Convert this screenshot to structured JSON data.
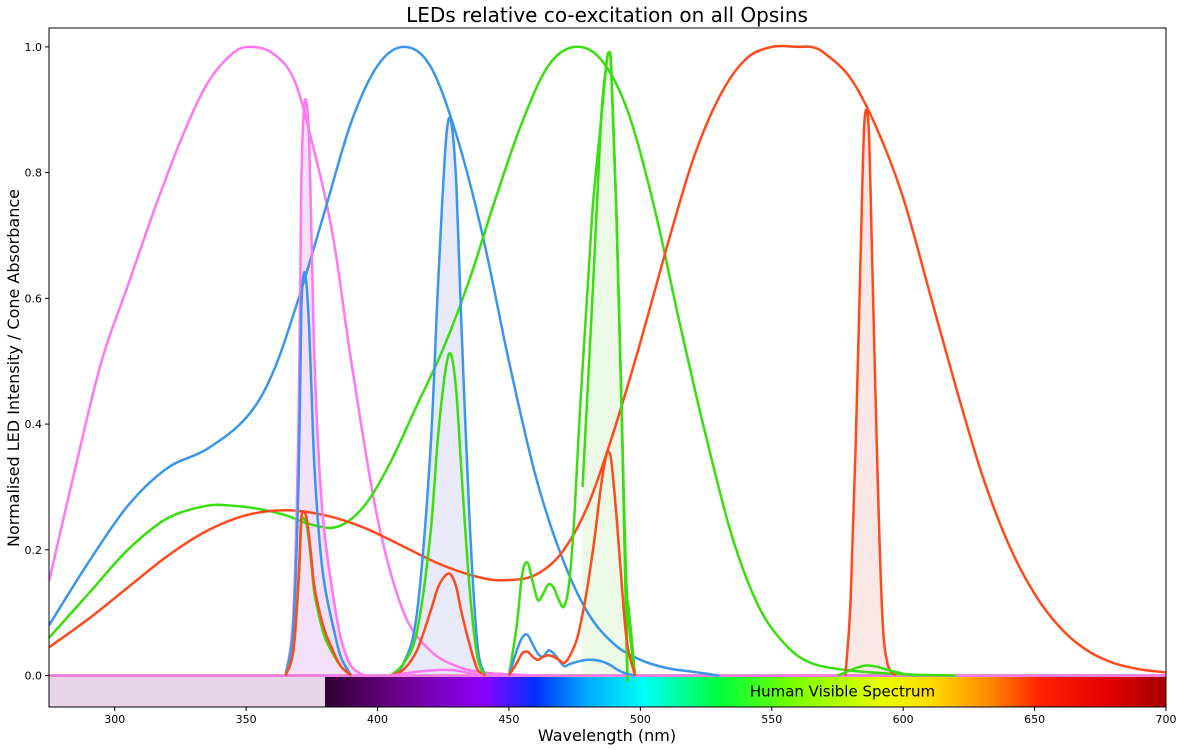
{
  "chart_data": {
    "type": "line",
    "title": "LEDs relative co-excitation on all Opsins",
    "xlabel": "Wavelength (nm)",
    "ylabel": "Normalised LED Intensity / Cone Absorbance",
    "xlim": [
      275,
      700
    ],
    "ylim": [
      -0.05,
      1.03
    ],
    "x_ticks": [
      300,
      350,
      400,
      450,
      500,
      550,
      600,
      650,
      700
    ],
    "y_ticks": [
      0.0,
      0.2,
      0.4,
      0.6,
      0.8,
      1.0
    ],
    "y_tick_labels": [
      "0.0",
      "0.2",
      "0.4",
      "0.6",
      "0.8",
      "1.0"
    ],
    "grid": false,
    "legend": "none",
    "spectrum_band": {
      "label": "Human Visible Spectrum",
      "range_nm": [
        380,
        700
      ],
      "uv_region_nm": [
        275,
        380
      ],
      "y_range": [
        -0.05,
        0.0
      ]
    },
    "series": [
      {
        "role": "opsin",
        "color": "#ff77f2",
        "x": [
          275,
          285,
          295,
          305,
          315,
          325,
          335,
          345,
          352,
          360,
          368,
          375,
          383,
          390,
          400,
          410,
          420,
          430,
          440,
          450,
          460
        ],
        "y": [
          0.15,
          0.33,
          0.5,
          0.62,
          0.74,
          0.85,
          0.94,
          0.99,
          1.0,
          0.99,
          0.95,
          0.85,
          0.7,
          0.5,
          0.25,
          0.1,
          0.04,
          0.015,
          0.005,
          0.002,
          0.0
        ]
      },
      {
        "role": "opsin",
        "color": "#3b96eb",
        "x": [
          275,
          290,
          305,
          320,
          335,
          350,
          360,
          370,
          380,
          390,
          400,
          410,
          420,
          430,
          440,
          450,
          460,
          470,
          480,
          490,
          500,
          510,
          520,
          530
        ],
        "y": [
          0.08,
          0.18,
          0.27,
          0.33,
          0.36,
          0.41,
          0.48,
          0.6,
          0.74,
          0.88,
          0.97,
          1.0,
          0.97,
          0.86,
          0.7,
          0.5,
          0.32,
          0.19,
          0.1,
          0.05,
          0.025,
          0.012,
          0.006,
          0.0
        ]
      },
      {
        "role": "opsin",
        "color": "#39de0e",
        "x": [
          275,
          290,
          305,
          320,
          335,
          345,
          355,
          365,
          375,
          385,
          395,
          405,
          415,
          425,
          435,
          445,
          455,
          465,
          475,
          485,
          495,
          505,
          515,
          525,
          535,
          545,
          555,
          565,
          580,
          600,
          620
        ],
        "y": [
          0.06,
          0.13,
          0.2,
          0.25,
          0.27,
          0.27,
          0.265,
          0.255,
          0.24,
          0.237,
          0.27,
          0.34,
          0.43,
          0.52,
          0.63,
          0.76,
          0.88,
          0.97,
          1.0,
          0.98,
          0.9,
          0.75,
          0.56,
          0.38,
          0.22,
          0.11,
          0.05,
          0.02,
          0.008,
          0.002,
          0.0
        ]
      },
      {
        "role": "opsin",
        "color": "#ff4a1d",
        "x": [
          275,
          290,
          305,
          320,
          335,
          350,
          365,
          380,
          395,
          410,
          425,
          440,
          450,
          460,
          470,
          480,
          490,
          500,
          510,
          520,
          530,
          540,
          550,
          560,
          565,
          570,
          580,
          590,
          600,
          610,
          620,
          630,
          640,
          650,
          660,
          670,
          680,
          690,
          700
        ],
        "y": [
          0.045,
          0.09,
          0.14,
          0.19,
          0.23,
          0.255,
          0.263,
          0.255,
          0.235,
          0.205,
          0.175,
          0.155,
          0.152,
          0.16,
          0.195,
          0.27,
          0.39,
          0.53,
          0.68,
          0.82,
          0.92,
          0.98,
          1.0,
          1.0,
          1.0,
          0.99,
          0.95,
          0.87,
          0.76,
          0.61,
          0.46,
          0.32,
          0.21,
          0.13,
          0.075,
          0.04,
          0.02,
          0.01,
          0.005
        ]
      },
      {
        "role": "led",
        "color": "#ff77f2",
        "fill": "#f1d6f7",
        "x": [
          365,
          368,
          370,
          371,
          372,
          373,
          374,
          375,
          376,
          378,
          380,
          383,
          386,
          390,
          395
        ],
        "y": [
          0.0,
          0.1,
          0.42,
          0.78,
          0.9,
          0.91,
          0.85,
          0.68,
          0.5,
          0.32,
          0.22,
          0.13,
          0.06,
          0.015,
          0.0
        ]
      },
      {
        "role": "led",
        "color": "#3b96eb",
        "fill": "#e0e3f7",
        "x": [
          405,
          410,
          415,
          420,
          423,
          426,
          428,
          430,
          432,
          435,
          438,
          441
        ],
        "y": [
          0.0,
          0.02,
          0.1,
          0.35,
          0.62,
          0.85,
          0.88,
          0.78,
          0.55,
          0.25,
          0.05,
          0.0
        ]
      },
      {
        "role": "led",
        "color": "#39de0e",
        "fill": "#e4f7de",
        "x": [
          495,
          478,
          482,
          485,
          487,
          488,
          489,
          491,
          493,
          495,
          498
        ],
        "y": [
          0.0,
          0.3,
          0.62,
          0.88,
          0.97,
          0.99,
          0.96,
          0.72,
          0.4,
          0.12,
          0.0
        ]
      },
      {
        "role": "led",
        "color": "#ff4a1d",
        "fill": "#f8e0de",
        "x": [
          578,
          580,
          582,
          584,
          585,
          586,
          587,
          588,
          590,
          592,
          594,
          597
        ],
        "y": [
          0.0,
          0.12,
          0.38,
          0.7,
          0.86,
          0.9,
          0.86,
          0.7,
          0.36,
          0.1,
          0.02,
          0.0
        ]
      },
      {
        "role": "response",
        "color": "#3b96eb",
        "x": [
          365,
          368,
          370,
          371,
          372,
          373,
          374,
          375,
          376,
          378,
          380,
          383,
          386,
          390
        ],
        "y": [
          0.0,
          0.08,
          0.32,
          0.58,
          0.64,
          0.62,
          0.55,
          0.44,
          0.33,
          0.21,
          0.14,
          0.08,
          0.03,
          0.0
        ]
      },
      {
        "role": "response",
        "color": "#39de0e",
        "x": [
          365,
          368,
          370,
          371,
          372,
          373,
          374,
          375,
          376,
          378,
          380,
          383,
          386,
          390
        ],
        "y": [
          0.0,
          0.04,
          0.15,
          0.24,
          0.25,
          0.24,
          0.21,
          0.17,
          0.13,
          0.09,
          0.06,
          0.035,
          0.015,
          0.0
        ]
      },
      {
        "role": "response",
        "color": "#ff4a1d",
        "x": [
          365,
          368,
          370,
          371,
          372,
          373,
          374,
          375,
          376,
          378,
          380,
          383,
          386,
          390
        ],
        "y": [
          0.0,
          0.04,
          0.16,
          0.25,
          0.26,
          0.25,
          0.22,
          0.18,
          0.14,
          0.1,
          0.07,
          0.04,
          0.015,
          0.0
        ]
      },
      {
        "role": "response",
        "color": "#39de0e",
        "x": [
          405,
          410,
          415,
          420,
          423,
          426,
          428,
          430,
          432,
          435,
          438,
          441
        ],
        "y": [
          0.0,
          0.02,
          0.07,
          0.22,
          0.38,
          0.49,
          0.51,
          0.45,
          0.32,
          0.14,
          0.03,
          0.0
        ]
      },
      {
        "role": "response",
        "color": "#ff4a1d",
        "x": [
          405,
          410,
          415,
          420,
          423,
          426,
          428,
          430,
          432,
          435,
          438,
          441
        ],
        "y": [
          0.0,
          0.01,
          0.04,
          0.1,
          0.14,
          0.16,
          0.16,
          0.14,
          0.1,
          0.05,
          0.01,
          0.0
        ]
      },
      {
        "role": "response",
        "color": "#ff77f2",
        "x": [
          405,
          410,
          415,
          420,
          425,
          430,
          435,
          440
        ],
        "y": [
          0.0,
          0.003,
          0.006,
          0.008,
          0.009,
          0.008,
          0.004,
          0.0
        ]
      },
      {
        "role": "response",
        "color": "#39de0e",
        "x": [
          450,
          453,
          455,
          457,
          459,
          461,
          463,
          465,
          467,
          469,
          471,
          473,
          475,
          477,
          480,
          482,
          485,
          487,
          488,
          489,
          491,
          493,
          495,
          498
        ],
        "y": [
          0.0,
          0.08,
          0.16,
          0.18,
          0.15,
          0.12,
          0.13,
          0.145,
          0.14,
          0.12,
          0.11,
          0.15,
          0.26,
          0.42,
          0.62,
          0.75,
          0.88,
          0.97,
          0.99,
          0.96,
          0.72,
          0.4,
          0.12,
          0.0
        ]
      },
      {
        "role": "response",
        "color": "#3b96eb",
        "x": [
          450,
          453,
          455,
          457,
          459,
          461,
          463,
          465,
          467,
          469,
          471,
          473,
          476,
          480,
          484,
          488,
          491,
          494,
          498
        ],
        "y": [
          0.0,
          0.04,
          0.06,
          0.065,
          0.05,
          0.035,
          0.03,
          0.04,
          0.035,
          0.025,
          0.015,
          0.018,
          0.022,
          0.025,
          0.024,
          0.018,
          0.01,
          0.004,
          0.0
        ]
      },
      {
        "role": "response",
        "color": "#ff4a1d",
        "x": [
          450,
          453,
          455,
          457,
          459,
          461,
          463,
          465,
          467,
          469,
          471,
          473,
          476,
          479,
          482,
          485,
          487,
          488,
          489,
          491,
          493,
          495,
          498
        ],
        "y": [
          0.0,
          0.02,
          0.035,
          0.038,
          0.03,
          0.025,
          0.03,
          0.032,
          0.03,
          0.025,
          0.02,
          0.03,
          0.06,
          0.12,
          0.2,
          0.3,
          0.35,
          0.355,
          0.34,
          0.25,
          0.14,
          0.05,
          0.0
        ]
      },
      {
        "role": "response",
        "color": "#39de0e",
        "x": [
          575,
          578,
          582,
          586,
          590,
          595,
          600,
          605
        ],
        "y": [
          0.0,
          0.005,
          0.012,
          0.016,
          0.014,
          0.008,
          0.003,
          0.0
        ]
      }
    ]
  }
}
